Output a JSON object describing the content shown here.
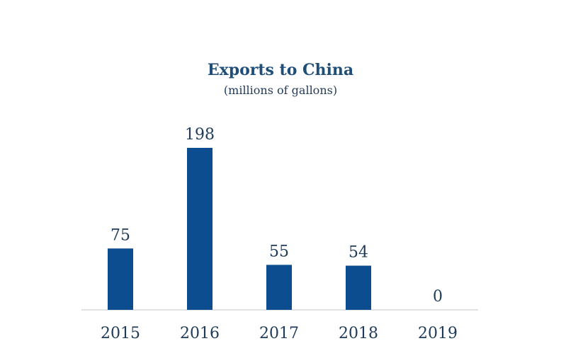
{
  "chart_data": {
    "type": "bar",
    "title": "Exports to China",
    "subtitle": "(millions of gallons)",
    "categories": [
      "2015",
      "2016",
      "2017",
      "2018",
      "2019"
    ],
    "values": [
      75,
      198,
      55,
      54,
      0
    ],
    "data_labels": [
      "75",
      "198",
      "55",
      "54",
      "0"
    ],
    "xlabel": "",
    "ylabel": "",
    "ylim": [
      0,
      198
    ],
    "grid": false,
    "legend": "none",
    "bar_color": "#0b4d8f"
  }
}
